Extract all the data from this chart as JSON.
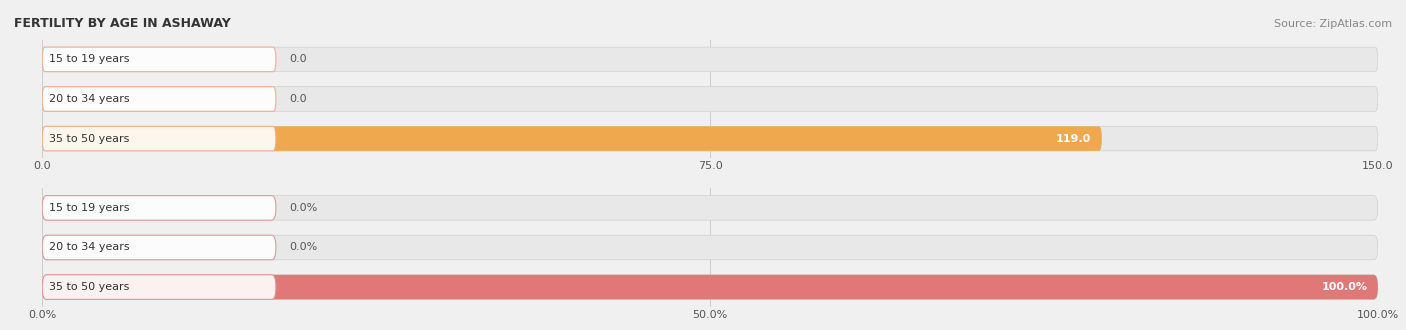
{
  "title": "FERTILITY BY AGE IN ASHAWAY",
  "source": "Source: ZipAtlas.com",
  "chart1": {
    "categories": [
      "15 to 19 years",
      "20 to 34 years",
      "35 to 50 years"
    ],
    "values": [
      0.0,
      0.0,
      119.0
    ],
    "xlim": [
      0,
      150
    ],
    "xticks": [
      0.0,
      75.0,
      150.0
    ],
    "xticklabels": [
      "0.0",
      "75.0",
      "150.0"
    ],
    "bar_colors": [
      "#f5c9a8",
      "#f5c9a8",
      "#f0a84e"
    ],
    "bar_bg_color": "#e8e8e8",
    "label_pill_color": "#fde8d8",
    "label_pill_border": "#f0a884"
  },
  "chart2": {
    "categories": [
      "15 to 19 years",
      "20 to 34 years",
      "35 to 50 years"
    ],
    "values": [
      0.0,
      0.0,
      100.0
    ],
    "xlim": [
      0,
      100
    ],
    "xticks": [
      0.0,
      50.0,
      100.0
    ],
    "xticklabels": [
      "0.0%",
      "50.0%",
      "100.0%"
    ],
    "bar_colors": [
      "#f0b8b8",
      "#f0b8b8",
      "#e07878"
    ],
    "bar_bg_color": "#e8e8e8",
    "label_pill_color": "#fde0e0",
    "label_pill_border": "#e09090"
  },
  "bg_color": "#f0f0f0",
  "title_fontsize": 9,
  "source_fontsize": 8,
  "label_fontsize": 8,
  "tick_fontsize": 8,
  "category_fontsize": 8,
  "value_label_fontsize": 8
}
